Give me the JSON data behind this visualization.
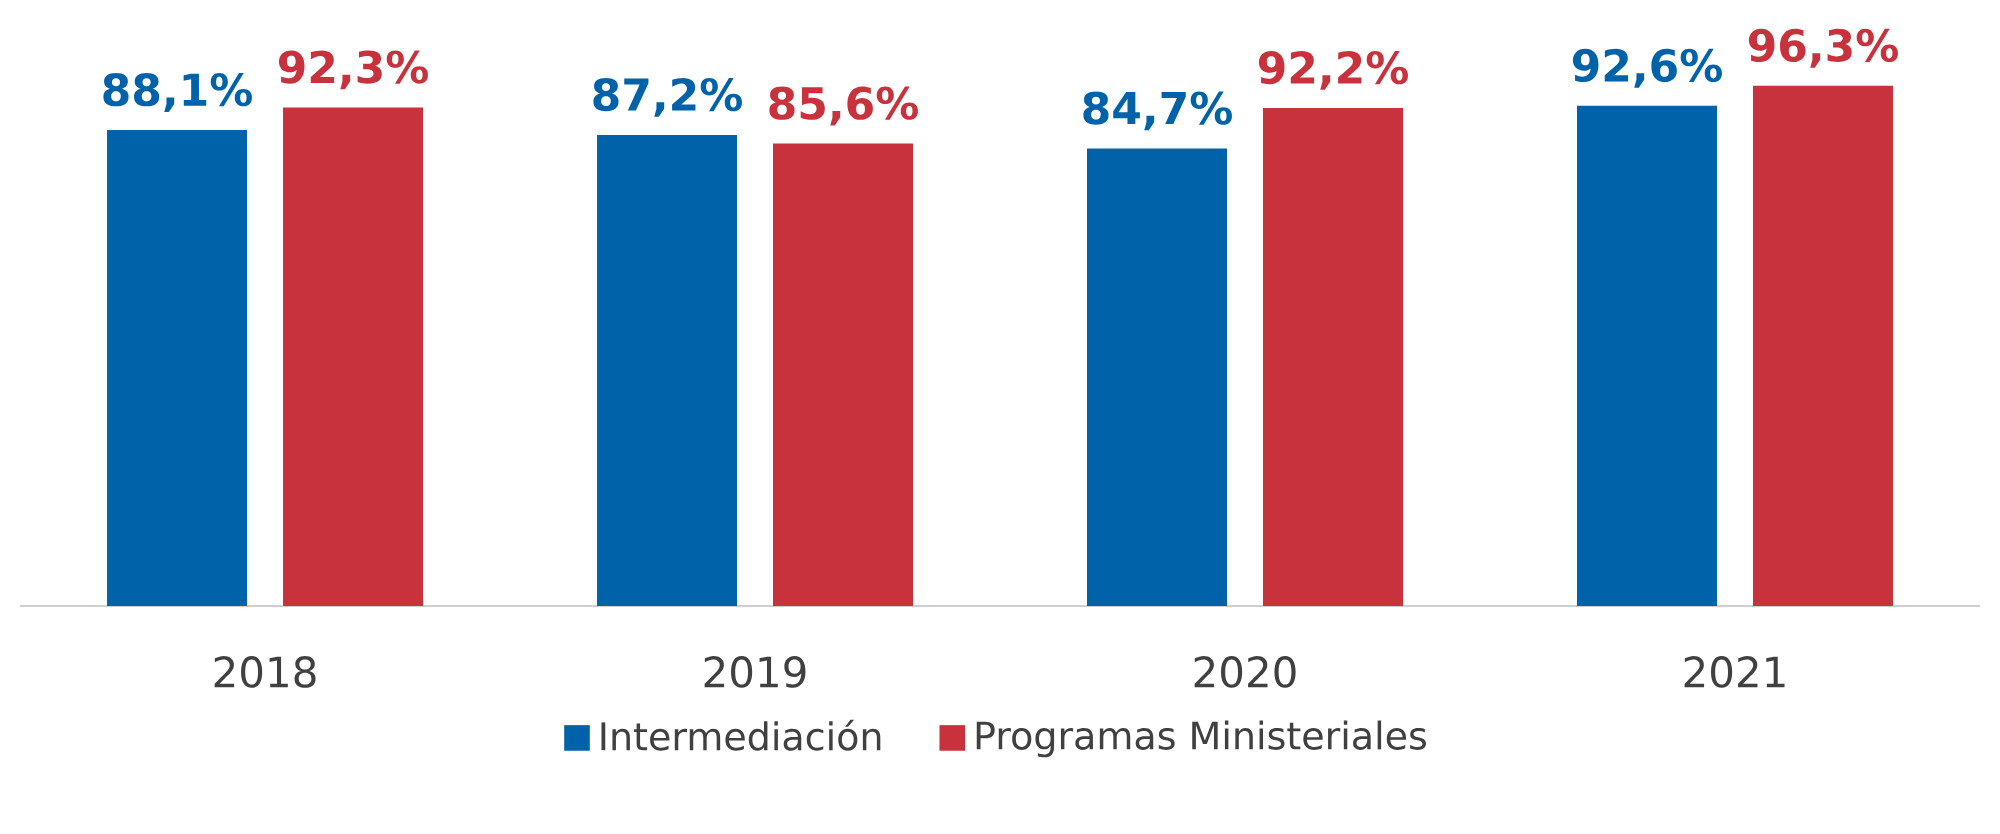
{
  "chart_data": {
    "type": "bar",
    "categories": [
      "2018",
      "2019",
      "2020",
      "2021"
    ],
    "series": [
      {
        "name": "Intermediación",
        "color": "#0062a8",
        "values": [
          88.1,
          87.2,
          84.7,
          92.6
        ],
        "value_labels": [
          "88,1%",
          "87,2%",
          "84,7%",
          "92,6%"
        ]
      },
      {
        "name": "Programas Ministeriales",
        "color": "#c8323c",
        "values": [
          92.3,
          85.6,
          92.2,
          96.3
        ],
        "value_labels": [
          "92,3%",
          "85,6%",
          "92,2%",
          "96,3%"
        ]
      }
    ],
    "legend": "bottom"
  }
}
